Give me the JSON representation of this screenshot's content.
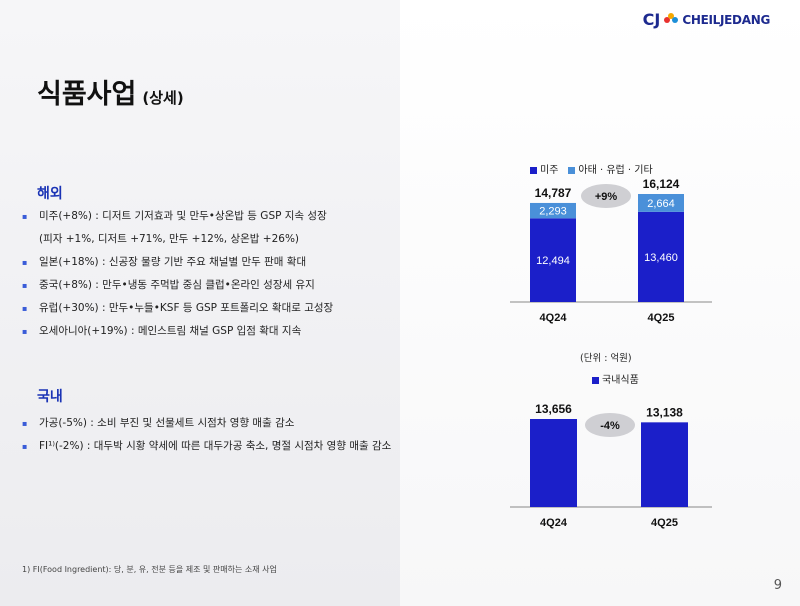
{
  "logo": {
    "cj": "CJ",
    "name": "CHEILJEDANG"
  },
  "title": {
    "main": "식품사업",
    "sub": "(상세)"
  },
  "overseas": {
    "heading": "해외",
    "items": [
      "미주(+8%) : 디저트 기저효과 및 만두•상온밥 등 GSP 지속 성장",
      "(피자 +1%, 디저트 +71%, 만두 +12%, 상온밥 +26%)",
      "일본(+18%) : 신공장 물량 기반 주요 채널별 만두 판매 확대",
      "중국(+8%) : 만두•냉동 주먹밥 중심 클럽•온라인 성장세 유지",
      "유럽(+30%) : 만두•누들•KSF 등 GSP 포트폴리오 확대로 고성장",
      "오세아니아(+19%) : 메인스트림 채널 GSP 입점 확대 지속"
    ]
  },
  "domestic": {
    "heading": "국내",
    "items": [
      "가공(-5%) : 소비 부진 및 선물세트 시점차 영향 매출 감소",
      "FI¹⁾(-2%) : 대두박 시황 약세에 따른 대두가공 축소, 명절 시점차 영향 매출 감소"
    ]
  },
  "footnote": "1)  FI(Food Ingredient): 당, 분, 유, 전분 등을 제조 및 판매하는 소재 사업",
  "page_number": "9",
  "unit_label": "(단위 : 억원)",
  "colors": {
    "dark_blue": "#1b1fc9",
    "light_blue": "#4a90d9",
    "accent": "#1a33b5"
  },
  "chart_data": [
    {
      "type": "bar",
      "stacked": true,
      "categories": [
        "4Q24",
        "4Q25"
      ],
      "series": [
        {
          "name": "미주",
          "values": [
            12494,
            13460
          ],
          "labels": [
            "12,494",
            "13,460"
          ],
          "color": "#1b1fc9"
        },
        {
          "name": "아태 · 유럽 · 기타",
          "values": [
            2293,
            2664
          ],
          "labels": [
            "2,293",
            "2,664"
          ],
          "color": "#4a90d9"
        }
      ],
      "totals": [
        14787,
        16124
      ],
      "total_labels": [
        "14,787",
        "16,124"
      ],
      "growth_label": "+9%"
    },
    {
      "type": "bar",
      "categories": [
        "4Q24",
        "4Q25"
      ],
      "series": [
        {
          "name": "국내식품",
          "values": [
            13656,
            13138
          ],
          "labels": [
            "13,656",
            "13,138"
          ],
          "color": "#1b1fc9"
        }
      ],
      "growth_label": "-4%"
    }
  ]
}
